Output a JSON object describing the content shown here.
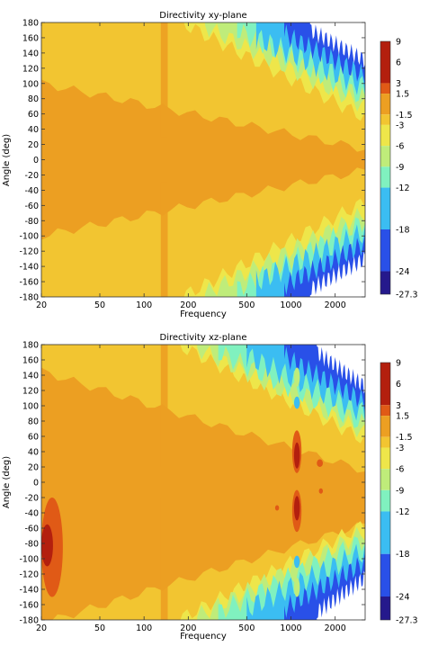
{
  "chart_data": [
    {
      "type": "heatmap",
      "title": "Directivity xy-plane",
      "xlabel": "Frequency",
      "ylabel": "Angle (deg)",
      "x_scale": "log",
      "xlim": [
        20,
        3200
      ],
      "ylim": [
        -180,
        180
      ],
      "x_ticks": [
        20,
        50,
        100,
        200,
        500,
        1000,
        2000
      ],
      "y_ticks": [
        -180,
        -160,
        -140,
        -120,
        -100,
        -80,
        -60,
        -40,
        -20,
        0,
        20,
        40,
        60,
        80,
        100,
        120,
        140,
        160,
        180
      ],
      "colorbar_ticks": [
        9,
        6,
        3,
        1.5,
        -1.5,
        -3,
        -6,
        -9,
        -12,
        -18,
        -24,
        -27.3
      ],
      "levels": [
        {
          "range": [
            3,
            9
          ],
          "color": "#b31f0e"
        },
        {
          "range": [
            1.5,
            3
          ],
          "color": "#e05a16"
        },
        {
          "range": [
            -1.5,
            1.5
          ],
          "color": "#ec9f22"
        },
        {
          "range": [
            -3,
            -1.5
          ],
          "color": "#f2c531"
        },
        {
          "range": [
            -6,
            -3
          ],
          "color": "#eee64a"
        },
        {
          "range": [
            -9,
            -6
          ],
          "color": "#bfec7a"
        },
        {
          "range": [
            -12,
            -9
          ],
          "color": "#80f1bf"
        },
        {
          "range": [
            -18,
            -12
          ],
          "color": "#3bbdf2"
        },
        {
          "range": [
            -24,
            -18
          ],
          "color": "#2950e8"
        },
        {
          "range": [
            -27.3,
            -24
          ],
          "color": "#25198c"
        },
        {
          "range": [
            "below",
            -27.3
          ],
          "color": "#ffffff"
        }
      ],
      "regions": [
        {
          "level": -3,
          "f_start": 20,
          "f_end": 3200,
          "half_width_start": 180,
          "half_width_end": 180,
          "wobble": 0
        },
        {
          "level": -1.5,
          "f_start": 20,
          "f_end": 3200,
          "half_width_start": 100,
          "half_width_end": 14,
          "wobble": 6
        },
        {
          "level": -6,
          "f_start": 180,
          "f_end": 3200,
          "half_width_start": 180,
          "half_width_end": 55,
          "wobble": 10
        },
        {
          "level": -9,
          "f_start": 260,
          "f_end": 3200,
          "half_width_start": 175,
          "half_width_end": 70,
          "wobble": 12
        },
        {
          "level": -12,
          "f_start": 430,
          "f_end": 3200,
          "half_width_start": 170,
          "half_width_end": 80,
          "wobble": 14
        },
        {
          "level": -18,
          "f_start": 580,
          "f_end": 3200,
          "half_width_start": 160,
          "half_width_end": 95,
          "wobble": 16
        },
        {
          "level": -24,
          "f_start": 900,
          "f_end": 3200,
          "half_width_start": 165,
          "half_width_end": 110,
          "wobble": 14
        },
        {
          "level": -28,
          "f_start": 1350,
          "f_end": 3200,
          "half_width_start": 170,
          "half_width_end": 130,
          "wobble": 12
        }
      ],
      "band": {
        "level": 0,
        "f_range": [
          130,
          145
        ],
        "angle_abs_range": [
          30,
          180
        ]
      }
    },
    {
      "type": "heatmap",
      "title": "Directivity xz-plane",
      "xlabel": "Frequency",
      "ylabel": "Angle (deg)",
      "x_scale": "log",
      "xlim": [
        20,
        3200
      ],
      "ylim": [
        -180,
        180
      ],
      "x_ticks": [
        20,
        50,
        100,
        200,
        500,
        1000,
        2000
      ],
      "y_ticks": [
        -180,
        -160,
        -140,
        -120,
        -100,
        -80,
        -60,
        -40,
        -20,
        0,
        20,
        40,
        60,
        80,
        100,
        120,
        140,
        160,
        180
      ],
      "colorbar_ticks": [
        9,
        6,
        3,
        1.5,
        -1.5,
        -3,
        -6,
        -9,
        -12,
        -18,
        -24,
        -27.3
      ],
      "levels": [
        {
          "range": [
            3,
            9
          ],
          "color": "#b31f0e"
        },
        {
          "range": [
            1.5,
            3
          ],
          "color": "#e05a16"
        },
        {
          "range": [
            -1.5,
            1.5
          ],
          "color": "#ec9f22"
        },
        {
          "range": [
            -3,
            -1.5
          ],
          "color": "#f2c531"
        },
        {
          "range": [
            -6,
            -3
          ],
          "color": "#eee64a"
        },
        {
          "range": [
            -9,
            -6
          ],
          "color": "#bfec7a"
        },
        {
          "range": [
            -12,
            -9
          ],
          "color": "#80f1bf"
        },
        {
          "range": [
            -18,
            -12
          ],
          "color": "#3bbdf2"
        },
        {
          "range": [
            -24,
            -18
          ],
          "color": "#2950e8"
        },
        {
          "range": [
            -27.3,
            -24
          ],
          "color": "#25198c"
        },
        {
          "range": [
            "below",
            -27.3
          ],
          "color": "#ffffff"
        }
      ],
      "regions": [
        {
          "level": -3,
          "f_start": 20,
          "f_end": 3200,
          "half_width_start": 180,
          "half_width_end": 180,
          "wobble": 0
        },
        {
          "level": -1.5,
          "f_start": 20,
          "f_end": 3200,
          "half_width_start": 165,
          "half_width_end": 35,
          "wobble": 6,
          "center": -20
        },
        {
          "level": -6,
          "f_start": 170,
          "f_end": 3200,
          "half_width_start": 180,
          "half_width_end": 55,
          "wobble": 10
        },
        {
          "level": -9,
          "f_start": 230,
          "f_end": 3200,
          "half_width_start": 175,
          "half_width_end": 65,
          "wobble": 12
        },
        {
          "level": -12,
          "f_start": 320,
          "f_end": 3200,
          "half_width_start": 170,
          "half_width_end": 75,
          "wobble": 14
        },
        {
          "level": -18,
          "f_start": 500,
          "f_end": 3200,
          "half_width_start": 165,
          "half_width_end": 90,
          "wobble": 16
        },
        {
          "level": -24,
          "f_start": 900,
          "f_end": 3200,
          "half_width_start": 165,
          "half_width_end": 105,
          "wobble": 14
        },
        {
          "level": -28,
          "f_start": 1500,
          "f_end": 3200,
          "half_width_start": 170,
          "half_width_end": 125,
          "wobble": 12
        }
      ],
      "band": {
        "level": 0,
        "f_range": [
          130,
          145
        ],
        "angle_abs_range": [
          20,
          180
        ]
      },
      "hotspots": [
        {
          "level": 2,
          "f_range": [
            20,
            28
          ],
          "angle_range": [
            -150,
            -20
          ]
        },
        {
          "level": 4,
          "f_range": [
            20,
            24
          ],
          "angle_range": [
            -110,
            -55
          ]
        },
        {
          "level": 2,
          "f_range": [
            1020,
            1180
          ],
          "angle_range": [
            -65,
            -10
          ]
        },
        {
          "level": 4,
          "f_range": [
            1050,
            1150
          ],
          "angle_range": [
            -50,
            -18
          ]
        },
        {
          "level": 2,
          "f_range": [
            1020,
            1180
          ],
          "angle_range": [
            12,
            68
          ]
        },
        {
          "level": 4,
          "f_range": [
            1050,
            1150
          ],
          "angle_range": [
            18,
            52
          ]
        },
        {
          "level": 2,
          "f_range": [
            1500,
            1650
          ],
          "angle_range": [
            20,
            30
          ]
        },
        {
          "level": 2,
          "f_range": [
            1550,
            1650
          ],
          "angle_range": [
            -15,
            -8
          ]
        },
        {
          "level": 2,
          "f_range": [
            780,
            830
          ],
          "angle_range": [
            -37,
            -30
          ]
        }
      ],
      "notches": [
        {
          "level": -14,
          "f_range": [
            1050,
            1150
          ],
          "angle_range": [
            -112,
            -96
          ]
        },
        {
          "level": -14,
          "f_range": [
            1050,
            1150
          ],
          "angle_range": [
            96,
            112
          ]
        },
        {
          "level": -9,
          "f_range": [
            1050,
            1150
          ],
          "angle_range": [
            -150,
            -125
          ]
        },
        {
          "level": -9,
          "f_range": [
            1050,
            1150
          ],
          "angle_range": [
            125,
            150
          ]
        }
      ]
    }
  ]
}
